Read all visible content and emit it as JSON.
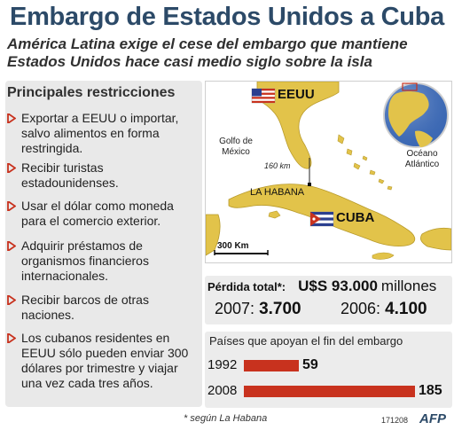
{
  "title": "Embargo de Estados Unidos a Cuba",
  "subtitle_line1": "América Latina exige el cese del embargo que mantiene",
  "subtitle_line2": "Estados Unidos hace casi medio siglo sobre la isla",
  "restrictions": {
    "title": "Principales restricciones",
    "items": [
      "Exportar a EEUU o importar, salvo alimentos en forma restringida.",
      "Recibir turistas estadounidenses.",
      "Usar el dólar como moneda para el comercio exterior.",
      "Adquirir préstamos de organismos financieros internacionales.",
      "Recibir barcos de otras naciones.",
      "Los cubanos residentes en EEUU sólo pueden enviar 300 dólares por trimestre y viajar una vez cada tres años."
    ]
  },
  "map": {
    "eeuu": "EEUU",
    "golfo_line1": "Golfo de",
    "golfo_line2": "México",
    "distance": "160 km",
    "oceano_line1": "Océano",
    "oceano_line2": "Atlántico",
    "habana": "LA HABANA",
    "cuba": "CUBA",
    "scale": "300 Km",
    "colors": {
      "land": "#e2c34a",
      "land_dark": "#cfa92b",
      "sea": "#ffffff",
      "globe": "#3a67b3"
    }
  },
  "loss": {
    "label": "Pérdida total*:",
    "amount": "U$S 93.000",
    "unit": "millones",
    "year1": "2007:",
    "value1": "3.700",
    "year2": "2006:",
    "value2": "4.100"
  },
  "support": {
    "title": "Países que apoyan el fin del embargo",
    "rows": [
      {
        "year": "1992",
        "value": 59
      },
      {
        "year": "2008",
        "value": 185
      }
    ],
    "max": 185,
    "bar_color": "#c8321e"
  },
  "footnote": "* según La Habana",
  "date_code": "171208",
  "agency": "AFP"
}
